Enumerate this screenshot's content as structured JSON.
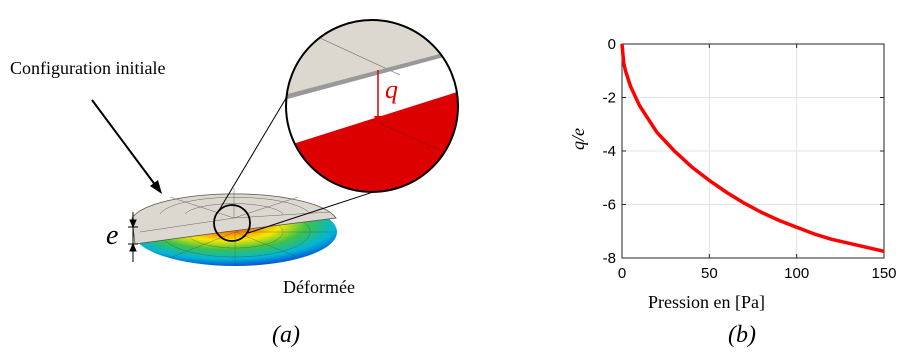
{
  "figure_a": {
    "label_initial": "Configuration initiale",
    "label_deformed": "Déformée",
    "label_e": "e",
    "label_q": "q",
    "caption": "(a)"
  },
  "figure_b": {
    "caption": "(b)"
  },
  "colors": {
    "curve": "#ff0000",
    "deformed_red": "#dd0000",
    "plate_gray": "#ddd8cf"
  },
  "chart_data": {
    "type": "line",
    "title": "",
    "xlabel": "Pression en [Pa]",
    "ylabel": "q/e",
    "xlim": [
      0,
      150
    ],
    "ylim": [
      -8,
      0
    ],
    "xticks": [
      "0",
      "50",
      "100",
      "150"
    ],
    "yticks": [
      "0",
      "-2",
      "-4",
      "-6",
      "-8"
    ],
    "grid": true,
    "series": [
      {
        "x": [
          0,
          1,
          2,
          5,
          10,
          15,
          20,
          30,
          40,
          50,
          60,
          70,
          80,
          90,
          100,
          110,
          120,
          130,
          140,
          150
        ],
        "values": [
          0,
          -0.7,
          -1.0,
          -1.6,
          -2.3,
          -2.8,
          -3.3,
          -4.0,
          -4.6,
          -5.1,
          -5.55,
          -5.95,
          -6.3,
          -6.6,
          -6.85,
          -7.1,
          -7.3,
          -7.45,
          -7.6,
          -7.75
        ]
      }
    ]
  }
}
